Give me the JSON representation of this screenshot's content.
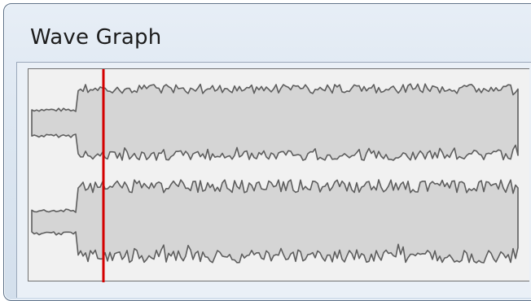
{
  "window": {
    "title": "Wave Graph"
  },
  "wave_graph": {
    "channels": 2,
    "playhead_position_fraction": 0.15,
    "colors": {
      "panel_background": "#f1f1f1",
      "waveform_fill": "#d5d5d5",
      "waveform_stroke": "#5e5e5e",
      "playhead": "#d40000"
    }
  }
}
